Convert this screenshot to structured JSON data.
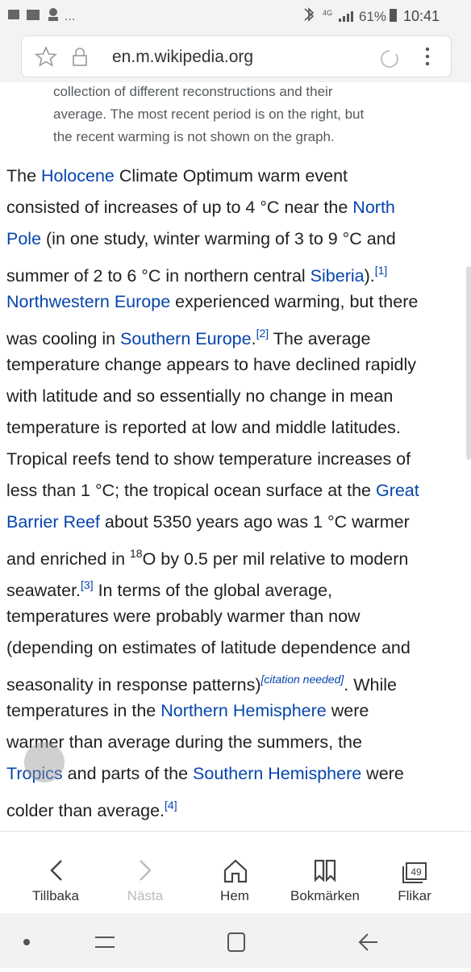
{
  "status": {
    "network": "4G",
    "battery": "61%",
    "time": "10:41"
  },
  "browser": {
    "url": "en.m.wikipedia.org"
  },
  "caption": [
    "collection of different reconstructions and their",
    "average. The most recent period is on the right, but",
    "the recent warming is not shown on the graph."
  ],
  "article": {
    "lines": [
      [
        {
          "text": "The "
        },
        {
          "text": "Holocene",
          "style": "link"
        },
        {
          "text": " Climate Optimum warm event"
        }
      ],
      [
        {
          "text": "consisted of increases of up to 4 °C near the "
        },
        {
          "text": "North",
          "style": "link"
        }
      ],
      [
        {
          "text": "Pole",
          "style": "link"
        },
        {
          "text": " (in one study, winter warming of 3 to 9 °C and"
        }
      ],
      [
        {
          "text": "summer of 2 to 6 °C in northern central "
        },
        {
          "text": "Siberia",
          "style": "link"
        },
        {
          "text": ")."
        },
        {
          "text": "[1]",
          "style": "sup-link"
        }
      ],
      [
        {
          "text": "Northwestern Europe",
          "style": "link"
        },
        {
          "text": " experienced warming, but there"
        }
      ],
      [
        {
          "text": "was cooling in "
        },
        {
          "text": "Southern Europe",
          "style": "link"
        },
        {
          "text": "."
        },
        {
          "text": "[2]",
          "style": "sup-link"
        },
        {
          "text": " The average"
        }
      ],
      [
        {
          "text": "temperature change appears to have declined rapidly"
        }
      ],
      [
        {
          "text": "with latitude and so essentially no change in mean"
        }
      ],
      [
        {
          "text": "temperature is reported at low and middle latitudes."
        }
      ],
      [
        {
          "text": "Tropical reefs tend to show temperature increases of"
        }
      ],
      [
        {
          "text": "less than 1 °C; the tropical ocean surface at the "
        },
        {
          "text": "Great",
          "style": "link"
        }
      ],
      [
        {
          "text": "Barrier Reef",
          "style": "link"
        },
        {
          "text": " about 5350 years ago was 1 °C warmer"
        }
      ],
      [
        {
          "text": "and enriched in "
        },
        {
          "text": "18",
          "style": "sup"
        },
        {
          "text": "O by 0.5 per mil relative to modern"
        }
      ],
      [
        {
          "text": "seawater."
        },
        {
          "text": "[3]",
          "style": "sup-link"
        },
        {
          "text": " In terms of the global average,"
        }
      ],
      [
        {
          "text": "temperatures were probably warmer than now"
        }
      ],
      [
        {
          "text": "(depending on estimates of latitude dependence and"
        }
      ],
      [
        {
          "text": "seasonality in response patterns)"
        },
        {
          "text": "[citation needed]",
          "style": "sup-link-italic"
        },
        {
          "text": ". While"
        }
      ],
      [
        {
          "text": "temperatures in the "
        },
        {
          "text": "Northern Hemisphere",
          "style": "link"
        },
        {
          "text": " were"
        }
      ],
      [
        {
          "text": "warmer than average during the summers, the"
        }
      ],
      [
        {
          "text": "Tropics",
          "style": "link"
        },
        {
          "text": " and parts of the "
        },
        {
          "text": "Southern Hemisphere",
          "style": "link"
        },
        {
          "text": " were"
        }
      ],
      [
        {
          "text": "colder than average."
        },
        {
          "text": "[4]",
          "style": "sup-link"
        }
      ]
    ]
  },
  "toolbar": {
    "back": "Tillbaka",
    "forward": "Nästa",
    "home": "Hem",
    "bookmarks": "Bokmärken",
    "tabs": "Flikar",
    "tab_count": "49"
  }
}
